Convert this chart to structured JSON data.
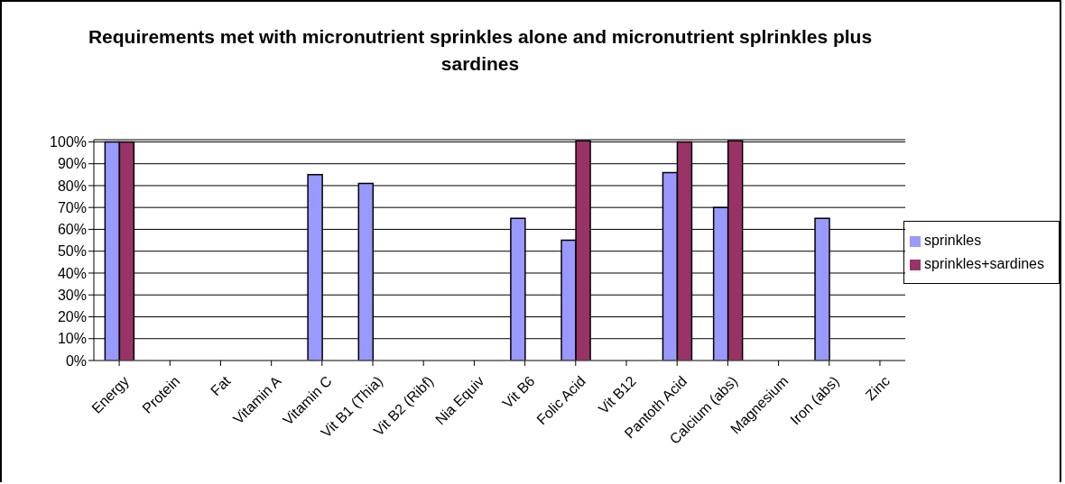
{
  "chart_data": {
    "type": "bar",
    "title": "Requirements met with micronutrient sprinkles alone and micronutrient splrinkles plus sardines",
    "categories": [
      "Energy",
      "Protein",
      "Fat",
      "Vitamin A",
      "Vitamin C",
      "Vit B1 (Thia)",
      "Vit B2 (Ribf)",
      "Nia Equiv",
      "Vit B6",
      "Folic Acid",
      "Vit B12",
      "Pantoth Acid",
      "Calcium (abs)",
      "Magnesium",
      "Iron (abs)",
      "Zinc"
    ],
    "series": [
      {
        "name": "sprinkles",
        "color": "#9999ff",
        "values": [
          100,
          null,
          null,
          null,
          85,
          81,
          null,
          null,
          65,
          55,
          null,
          86,
          70,
          null,
          65,
          null
        ]
      },
      {
        "name": "sprinkles+sardines",
        "color": "#993366",
        "values": [
          100,
          null,
          null,
          null,
          null,
          null,
          null,
          null,
          null,
          100.5,
          null,
          100,
          100.5,
          null,
          null,
          null
        ]
      }
    ],
    "ylim": [
      0,
      101
    ],
    "yticks": [
      {
        "value": 0,
        "label": "0%"
      },
      {
        "value": 10,
        "label": "10%"
      },
      {
        "value": 20,
        "label": "20%"
      },
      {
        "value": 30,
        "label": "30%"
      },
      {
        "value": 40,
        "label": "40%"
      },
      {
        "value": 50,
        "label": "50%"
      },
      {
        "value": 60,
        "label": "60%"
      },
      {
        "value": 70,
        "label": "70%"
      },
      {
        "value": 80,
        "label": "80%"
      },
      {
        "value": 90,
        "label": "90%"
      },
      {
        "value": 100,
        "label": "100%"
      }
    ],
    "grid": "y",
    "legend": "right"
  }
}
